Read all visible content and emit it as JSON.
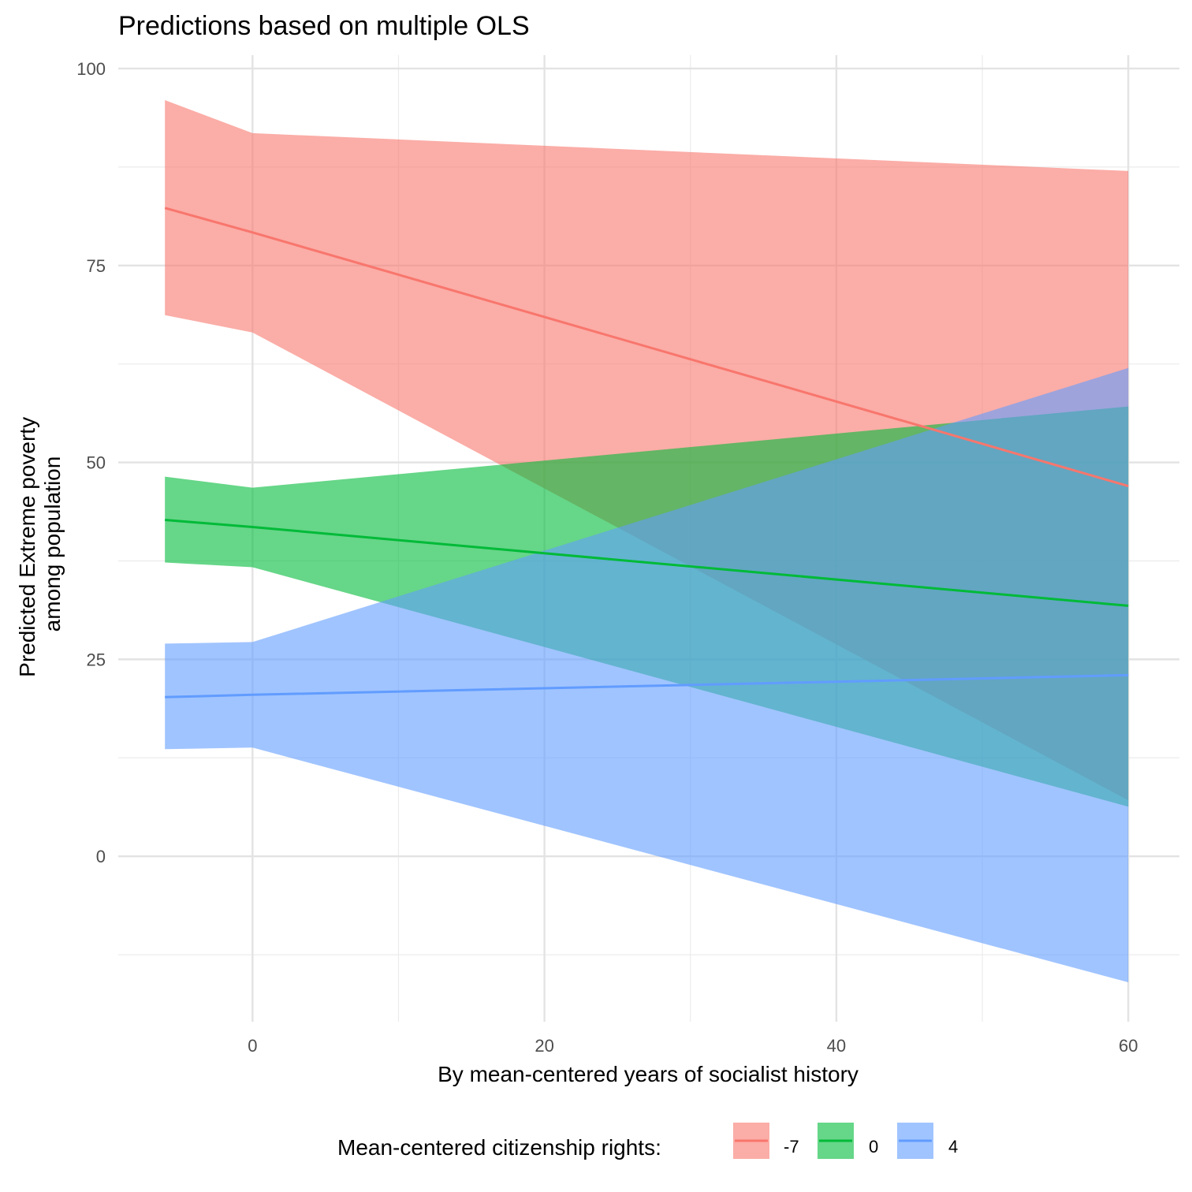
{
  "chart_data": {
    "type": "line",
    "title": "Predictions based on multiple OLS",
    "xlabel": "By mean-centered years of socialist history",
    "ylabel": [
      "Predicted Extreme poverty",
      "among population"
    ],
    "xlim": [
      -9.2,
      63.5
    ],
    "ylim": [
      -21,
      101.7
    ],
    "x_ticks": [
      0,
      20,
      40,
      60
    ],
    "y_ticks": [
      0,
      25,
      50,
      75,
      100
    ],
    "x_minor_ticks": [
      10,
      30,
      50
    ],
    "y_minor_ticks": [
      -12.5,
      12.5,
      37.5,
      62.5,
      87.5
    ],
    "grid": true,
    "legend": {
      "position": "bottom",
      "title": "Mean-centered citizenship rights:",
      "entries": [
        "-7",
        "0",
        "4"
      ]
    },
    "series": [
      {
        "name": "-7",
        "color": "#F8766D",
        "x": [
          -6,
          0,
          60
        ],
        "y": [
          82.3,
          79.2,
          47.0
        ],
        "lower": [
          68.7,
          66.5,
          7.1
        ],
        "upper": [
          96.0,
          91.8,
          87.0
        ]
      },
      {
        "name": "0",
        "color": "#00BA38",
        "x": [
          -6,
          0,
          60
        ],
        "y": [
          42.7,
          41.8,
          31.8
        ],
        "lower": [
          37.3,
          36.7,
          6.3
        ],
        "upper": [
          48.2,
          46.8,
          57.1
        ]
      },
      {
        "name": "4",
        "color": "#619CFF",
        "x": [
          -6,
          0,
          60
        ],
        "y": [
          20.2,
          20.5,
          23.0
        ],
        "lower": [
          13.6,
          13.8,
          -16.0
        ],
        "upper": [
          27.0,
          27.2,
          62.0
        ]
      }
    ]
  }
}
